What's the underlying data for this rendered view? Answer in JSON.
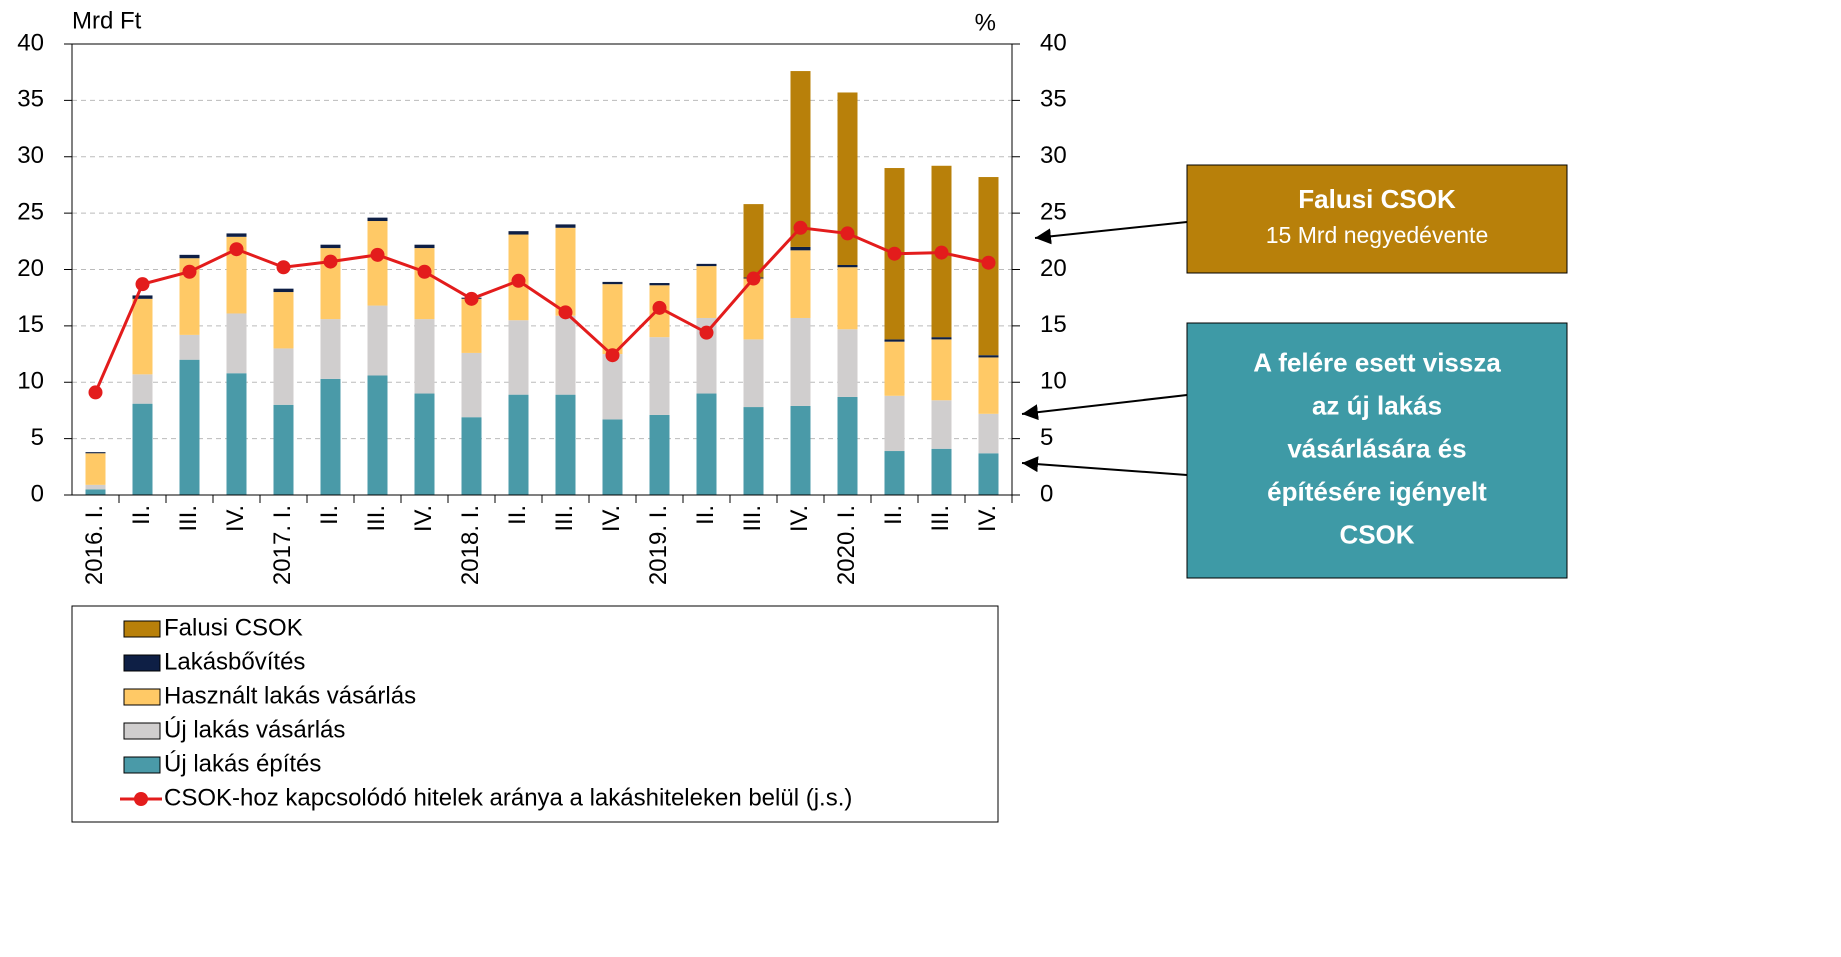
{
  "chart_data": {
    "type": "stacked_bar_line",
    "y_axis_label": "Mrd Ft",
    "y2_axis_label": "%",
    "categories": [
      "2016. I.",
      "II.",
      "III.",
      "IV.",
      "2017. I.",
      "II.",
      "III.",
      "IV.",
      "2018. I.",
      "II.",
      "III.",
      "IV.",
      "2019. I.",
      "II.",
      "III.",
      "IV.",
      "2020. I.",
      "II.",
      "III.",
      "IV."
    ],
    "series": [
      {
        "name": "Új lakás építés",
        "color": "#4a9aa8",
        "values": [
          0.5,
          8.1,
          12.0,
          10.8,
          8.0,
          10.3,
          10.6,
          9.0,
          6.9,
          8.9,
          8.9,
          6.7,
          7.1,
          9.0,
          7.8,
          7.9,
          8.7,
          3.9,
          4.1,
          3.7
        ]
      },
      {
        "name": "Új lakás vásárlás",
        "color": "#d0cece",
        "values": [
          0.4,
          2.6,
          2.2,
          5.3,
          5.0,
          5.3,
          6.2,
          6.6,
          5.7,
          6.6,
          7.0,
          5.8,
          6.9,
          6.7,
          6.0,
          7.8,
          6.0,
          4.9,
          4.3,
          3.5
        ]
      },
      {
        "name": "Használt lakás vásárlás",
        "color": "#ffc966",
        "values": [
          2.8,
          6.7,
          6.8,
          6.8,
          5.0,
          6.3,
          7.5,
          6.3,
          4.8,
          7.6,
          7.8,
          6.2,
          4.6,
          4.6,
          5.4,
          6.0,
          5.5,
          4.8,
          5.4,
          5.0
        ]
      },
      {
        "name": "Lakásbővítés",
        "color": "#0e1f45",
        "values": [
          0.1,
          0.3,
          0.3,
          0.3,
          0.3,
          0.3,
          0.3,
          0.3,
          0.1,
          0.3,
          0.3,
          0.2,
          0.2,
          0.2,
          0.1,
          0.3,
          0.2,
          0.2,
          0.2,
          0.2
        ]
      },
      {
        "name": "Falusi CSOK",
        "color": "#b8800a",
        "values": [
          0,
          0,
          0,
          0,
          0,
          0,
          0,
          0,
          0,
          0,
          0,
          0,
          0,
          0,
          6.5,
          15.6,
          15.3,
          15.2,
          15.2,
          15.8
        ]
      },
      {
        "name": "CSOK-hoz kapcsolódó hitelek aránya a lakáshiteleken belül (j.s.)",
        "color": "#e31c1c",
        "axis": "y2",
        "type": "line",
        "values": [
          9.1,
          18.7,
          19.8,
          21.8,
          20.2,
          20.7,
          21.3,
          19.8,
          17.4,
          19.0,
          16.2,
          12.4,
          16.6,
          14.4,
          19.2,
          23.7,
          23.2,
          21.4,
          21.5,
          20.6
        ]
      }
    ],
    "ylim": [
      0,
      40
    ],
    "yticks": [
      0,
      5,
      10,
      15,
      20,
      25,
      30,
      35,
      40
    ],
    "y2lim": [
      0,
      40
    ],
    "y2ticks": [
      0,
      5,
      10,
      15,
      20,
      25,
      30,
      35,
      40
    ],
    "grid": true,
    "annotations": [
      {
        "color": "#b8800a",
        "lines": [
          "Falusi CSOK",
          "15 Mrd negyedévente"
        ]
      },
      {
        "color": "#3e9aa6",
        "lines": [
          "A felére esett vissza",
          "az új lakás",
          "vásárlására és",
          "építésére igényelt",
          "CSOK"
        ]
      }
    ]
  }
}
